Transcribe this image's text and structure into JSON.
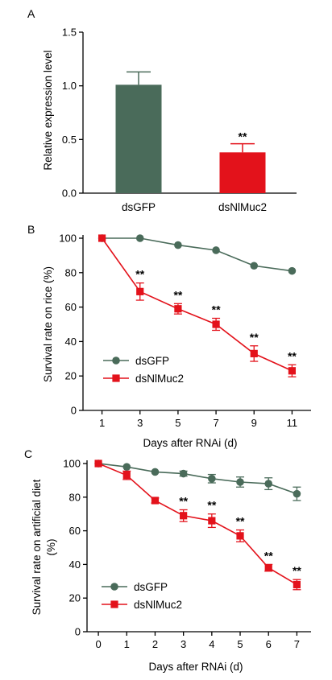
{
  "colors": {
    "dsGFP": "#4a6b5a",
    "dsNlMuc2": "#e3121b"
  },
  "chart_data": [
    {
      "panel": "A",
      "type": "bar",
      "categories": [
        "dsGFP",
        "dsNlMuc2"
      ],
      "values": [
        1.01,
        0.38
      ],
      "errors": [
        0.12,
        0.08
      ],
      "significance": [
        "",
        "**"
      ],
      "ylabel": "Relative expression level",
      "xlabel": "",
      "ylim": [
        0,
        1.5
      ],
      "yticks": [
        "0.0",
        "0.5",
        "1.0",
        "1.5"
      ],
      "category_labels": [
        "dsGFP",
        "dsNlMuc2"
      ]
    },
    {
      "panel": "B",
      "type": "line",
      "x": [
        1,
        3,
        5,
        7,
        9,
        11
      ],
      "xticks": [
        "1",
        "3",
        "5",
        "7",
        "9",
        "11"
      ],
      "series": [
        {
          "name": "dsGFP",
          "values": [
            100,
            100,
            96,
            93,
            84,
            81
          ],
          "errors": [
            0,
            0,
            0,
            0,
            0,
            0
          ],
          "marker": "circle",
          "significance": [
            "",
            "",
            "",
            "",
            "",
            ""
          ]
        },
        {
          "name": "dsNlMuc2",
          "values": [
            100,
            69,
            59,
            50,
            33,
            23
          ],
          "errors": [
            0,
            5,
            3,
            3.5,
            4.5,
            3.5
          ],
          "marker": "square",
          "significance": [
            "",
            "**",
            "**",
            "**",
            "**",
            "**"
          ]
        }
      ],
      "xlabel": "Days after RNAi (d)",
      "ylabel": "Survival rate on rice (%)",
      "xlim": [
        0,
        12
      ],
      "ylim": [
        0,
        100
      ],
      "yticks": [
        "0",
        "20",
        "40",
        "60",
        "80",
        "100"
      ],
      "legend": "bottom-left"
    },
    {
      "panel": "C",
      "type": "line",
      "x": [
        0,
        1,
        2,
        3,
        4,
        5,
        6,
        7
      ],
      "xticks": [
        "0",
        "1",
        "2",
        "3",
        "4",
        "5",
        "6",
        "7"
      ],
      "series": [
        {
          "name": "dsGFP",
          "values": [
            100,
            98,
            95,
            94,
            91,
            89,
            88,
            82
          ],
          "errors": [
            0,
            0,
            0,
            1.5,
            2.5,
            3,
            3.5,
            4
          ],
          "marker": "circle",
          "significance": [
            "",
            "",
            "",
            "",
            "",
            "",
            "",
            ""
          ]
        },
        {
          "name": "dsNlMuc2",
          "values": [
            100,
            93,
            78,
            69,
            66,
            57,
            38,
            28
          ],
          "errors": [
            0,
            2.5,
            1.5,
            3.5,
            4,
            3.5,
            2,
            3
          ],
          "marker": "square",
          "significance": [
            "",
            "",
            "",
            "**",
            "**",
            "**",
            "**",
            "**"
          ]
        }
      ],
      "xlabel": "Days after RNAi (d)",
      "ylabel": "Survival rate on artificial diet (%)",
      "ylabel_lines": [
        "Survival rate on artificial diet",
        "(%)"
      ],
      "xlim": [
        -0.4,
        7.5
      ],
      "ylim": [
        0,
        100
      ],
      "yticks": [
        "0",
        "20",
        "40",
        "60",
        "80",
        "100"
      ],
      "legend": "bottom-left"
    }
  ]
}
